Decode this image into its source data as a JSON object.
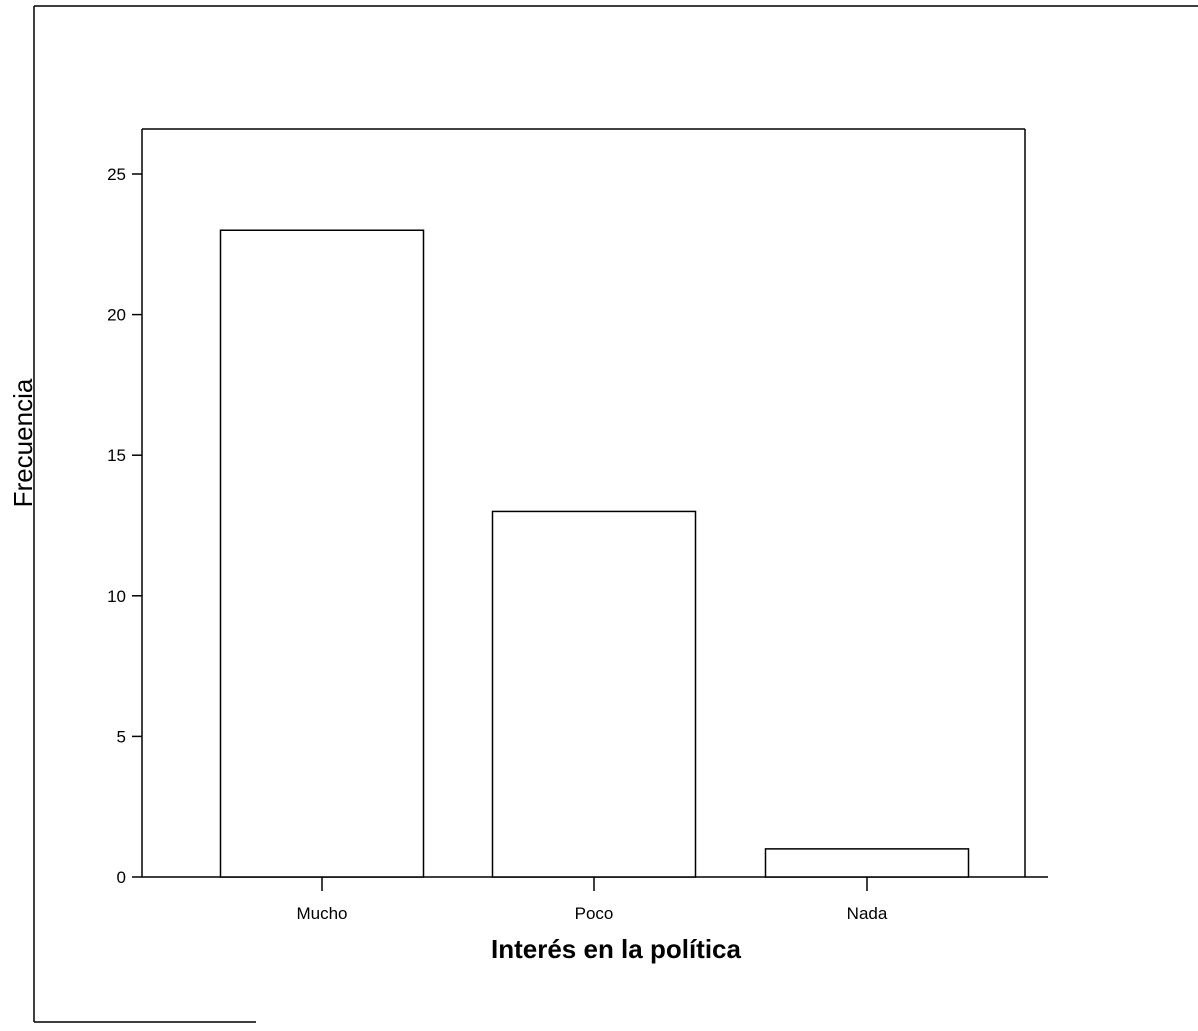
{
  "chart_data": {
    "type": "bar",
    "categories": [
      "Mucho",
      "Poco",
      "Nada"
    ],
    "values": [
      23,
      13,
      1
    ],
    "xlabel": "Interés en la política",
    "ylabel": "Frecuencia",
    "yticks": [
      0,
      5,
      10,
      15,
      20,
      25
    ],
    "ylim": [
      0,
      26.6
    ],
    "grid": false,
    "legend": "none",
    "colors": {
      "bar_fill": "#ffffff",
      "bar_stroke": "#000000",
      "background": "#ffffff"
    }
  }
}
